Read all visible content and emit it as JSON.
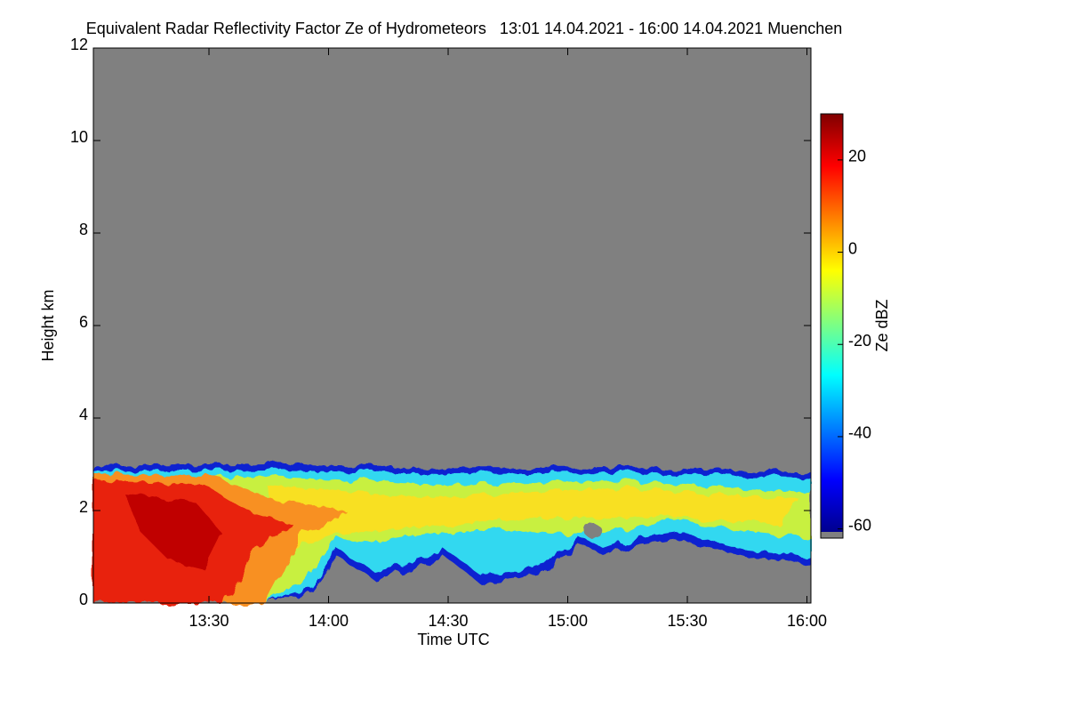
{
  "chart_data": {
    "type": "heatmap",
    "title": "Equivalent Radar Reflectivity Factor Ze of Hydrometeors   13:01 14.04.2021 - 16:00 14.04.2021 Muenchen",
    "x_label": "Time UTC",
    "y_label": "Height km",
    "colorbar_label": "Ze dBZ",
    "xlim": [
      781,
      961
    ],
    "xticks": [
      {
        "value": 810,
        "label": "13:30"
      },
      {
        "value": 840,
        "label": "14:00"
      },
      {
        "value": 870,
        "label": "14:30"
      },
      {
        "value": 900,
        "label": "15:00"
      },
      {
        "value": 930,
        "label": "15:30"
      },
      {
        "value": 960,
        "label": "16:00"
      }
    ],
    "ylim": [
      0,
      12
    ],
    "yticks": [
      0,
      2,
      4,
      6,
      8,
      10,
      12
    ],
    "clim": [
      -62,
      30
    ],
    "cticks": [
      -60,
      -40,
      -20,
      0,
      20
    ],
    "colormap": "jet",
    "missing_color": "#808080"
  }
}
